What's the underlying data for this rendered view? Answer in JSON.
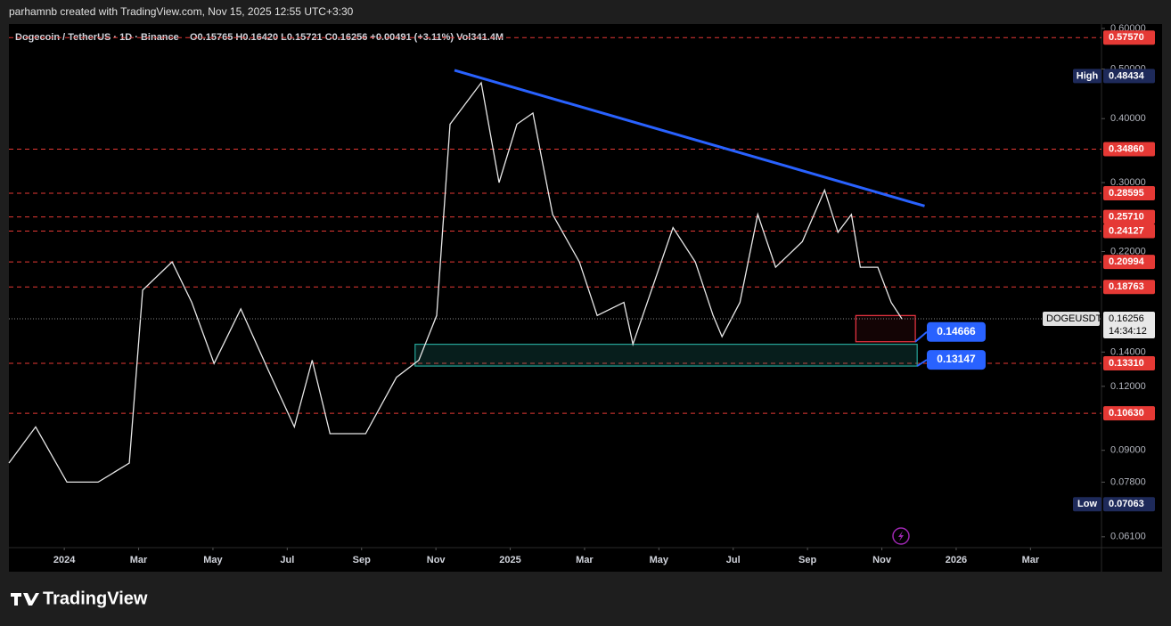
{
  "header": "parhamnb created with TradingView.com, Nov 15, 2025 12:55 UTC+3:30",
  "watermark": "TradingView",
  "chart_data": {
    "type": "line",
    "title": "Dogecoin / TetherUS · 1D · Binance",
    "ohlc": "O0.15765 H0.16420 L0.15721 C0.16256 +0.00491 (+3.11%) Vol341.4M",
    "log_scale": true,
    "color": "#e8e8e8",
    "xlim": [
      -1.49,
      27.91
    ],
    "xticks": [
      {
        "value": 0,
        "label": "2024"
      },
      {
        "value": 2,
        "label": "Mar"
      },
      {
        "value": 4,
        "label": "May"
      },
      {
        "value": 6,
        "label": "Jul"
      },
      {
        "value": 8,
        "label": "Sep"
      },
      {
        "value": 10,
        "label": "Nov"
      },
      {
        "value": 12,
        "label": "2025"
      },
      {
        "value": 14,
        "label": "Mar"
      },
      {
        "value": 16,
        "label": "May"
      },
      {
        "value": 18,
        "label": "Jul"
      },
      {
        "value": 20,
        "label": "Sep"
      },
      {
        "value": 22,
        "label": "Nov"
      },
      {
        "value": 24,
        "label": "2026"
      },
      {
        "value": 26,
        "label": "Mar"
      }
    ],
    "ylim": [
      0.0581,
      0.612
    ],
    "yticks": [
      {
        "value": 0.6,
        "label": "0.60000"
      },
      {
        "value": 0.5,
        "label": "0.50000"
      },
      {
        "value": 0.4,
        "label": "0.40000"
      },
      {
        "value": 0.3,
        "label": "0.30000"
      },
      {
        "value": 0.22,
        "label": "0.22000"
      },
      {
        "value": 0.14,
        "label": "0.14000"
      },
      {
        "value": 0.12,
        "label": "0.12000"
      },
      {
        "value": 0.09,
        "label": "0.09000"
      },
      {
        "value": 0.078,
        "label": "0.07800"
      },
      {
        "value": 0.061,
        "label": "0.06100"
      }
    ],
    "x": [
      -1.49,
      -0.77,
      0.07,
      0.91,
      1.75,
      2.11,
      2.9,
      3.43,
      4.03,
      4.75,
      5.47,
      6.19,
      6.67,
      7.15,
      8.11,
      8.94,
      9.54,
      10.02,
      10.38,
      11.22,
      11.7,
      12.18,
      12.61,
      13.14,
      13.86,
      14.34,
      15.06,
      15.3,
      16.38,
      16.98,
      17.46,
      17.7,
      18.18,
      18.66,
      19.14,
      19.86,
      20.46,
      20.82,
      21.18,
      21.42,
      21.89,
      22.25,
      22.54
    ],
    "values": [
      0.085,
      0.1,
      0.078,
      0.078,
      0.085,
      0.185,
      0.21,
      0.175,
      0.133,
      0.17,
      0.13,
      0.1,
      0.135,
      0.097,
      0.097,
      0.125,
      0.135,
      0.165,
      0.39,
      0.47,
      0.3,
      0.39,
      0.41,
      0.26,
      0.21,
      0.165,
      0.175,
      0.145,
      0.245,
      0.21,
      0.165,
      0.15,
      0.175,
      0.26,
      0.205,
      0.23,
      0.29,
      0.24,
      0.26,
      0.205,
      0.205,
      0.175,
      0.16256
    ],
    "levels": [
      {
        "value": 0.5757,
        "label": "0.57570"
      },
      {
        "value": 0.3486,
        "label": "0.34860"
      },
      {
        "value": 0.28595,
        "label": "0.28595"
      },
      {
        "value": 0.2571,
        "label": "0.25710"
      },
      {
        "value": 0.24127,
        "label": "0.24127"
      },
      {
        "value": 0.20994,
        "label": "0.20994"
      },
      {
        "value": 0.18763,
        "label": "0.18763"
      },
      {
        "value": 0.1331,
        "label": "0.13310"
      },
      {
        "value": 0.1063,
        "label": "0.10630"
      }
    ],
    "level_color": "#e53935",
    "high": {
      "name": "High",
      "value": 0.48434,
      "label": "0.48434"
    },
    "low": {
      "name": "Low",
      "value": 0.07063,
      "label": "0.07063"
    },
    "last": {
      "name": "DOGEUSDT",
      "value": 0.16256,
      "label": "0.16256",
      "countdown": "14:34:12"
    },
    "trendline": {
      "color": "#2962ff",
      "x": [
        10.5,
        23.15
      ],
      "values": [
        0.497,
        0.27
      ]
    },
    "zones": [
      {
        "color": "#26a69a",
        "x": [
          9.44,
          22.95
        ],
        "values": [
          0.145,
          0.13147
        ]
      },
      {
        "color": "#f23645",
        "x": [
          21.3,
          22.9
        ],
        "values": [
          0.165,
          0.14666
        ]
      }
    ],
    "callouts": [
      {
        "value": 0.14666,
        "label": "0.14666"
      },
      {
        "value": 0.13147,
        "label": "0.13147"
      }
    ]
  }
}
